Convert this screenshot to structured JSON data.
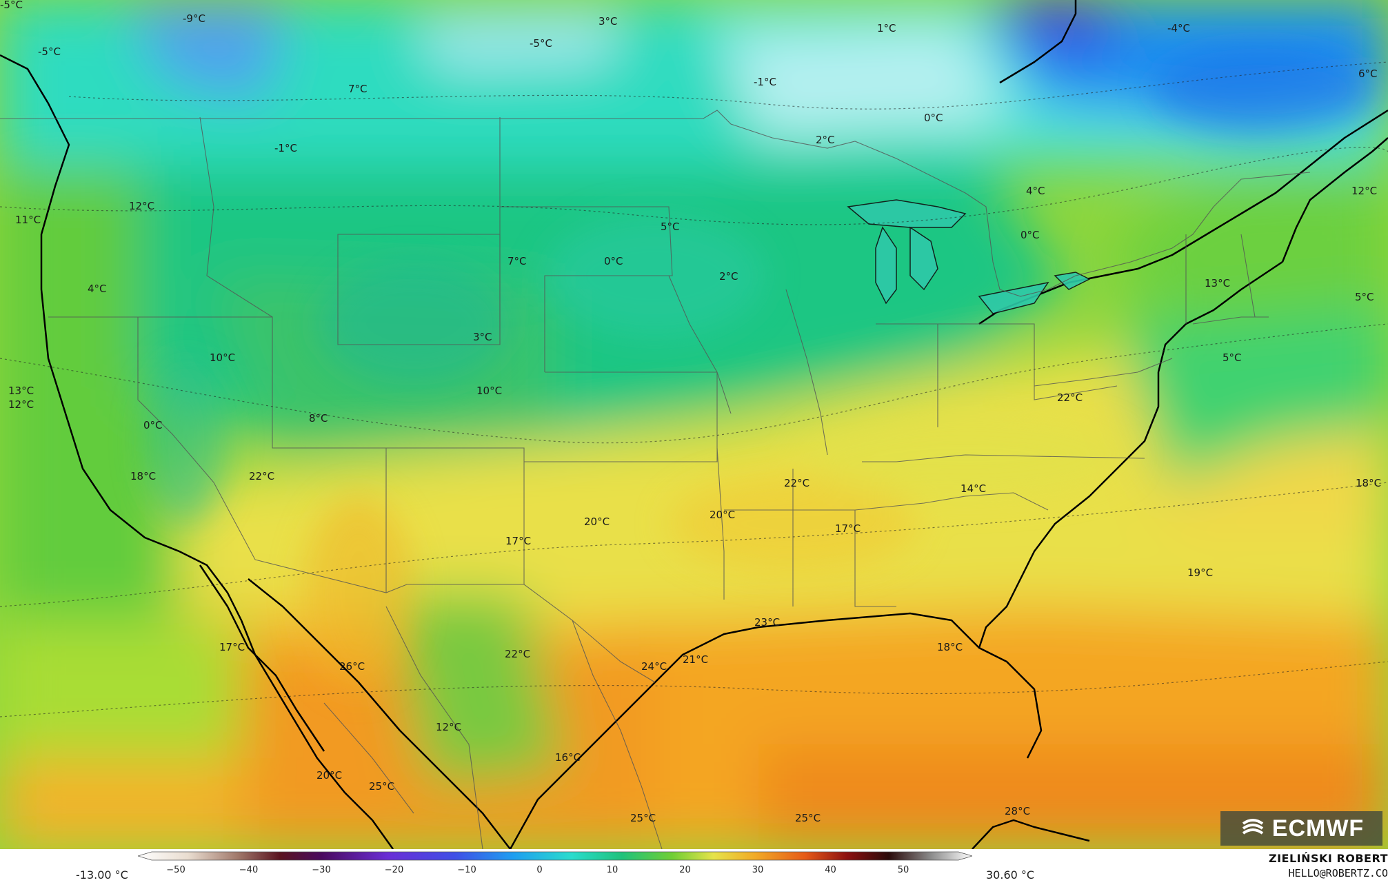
{
  "map": {
    "labels": [
      {
        "text": "-9°C"
      },
      {
        "text": "-5°C"
      },
      {
        "text": "3°C"
      },
      {
        "text": "-5°C"
      },
      {
        "text": "1°C"
      },
      {
        "text": "-4°C"
      },
      {
        "text": "6°C"
      },
      {
        "text": "-5°C"
      },
      {
        "text": "7°C"
      },
      {
        "text": "-1°C"
      },
      {
        "text": "0°C"
      },
      {
        "text": "-1°C"
      },
      {
        "text": "2°C"
      },
      {
        "text": "4°C"
      },
      {
        "text": "12°C"
      },
      {
        "text": "11°C"
      },
      {
        "text": "12°C"
      },
      {
        "text": "5°C"
      },
      {
        "text": "0°C"
      },
      {
        "text": "7°C"
      },
      {
        "text": "0°C"
      },
      {
        "text": "2°C"
      },
      {
        "text": "4°C"
      },
      {
        "text": "13°C"
      },
      {
        "text": "5°C"
      },
      {
        "text": "3°C"
      },
      {
        "text": "10°C"
      },
      {
        "text": "10°C"
      },
      {
        "text": "5°C"
      },
      {
        "text": "13°C"
      },
      {
        "text": "12°C"
      },
      {
        "text": "8°C"
      },
      {
        "text": "0°C"
      },
      {
        "text": "22°C"
      },
      {
        "text": "18°C"
      },
      {
        "text": "22°C"
      },
      {
        "text": "22°C"
      },
      {
        "text": "14°C"
      },
      {
        "text": "18°C"
      },
      {
        "text": "20°C"
      },
      {
        "text": "20°C"
      },
      {
        "text": "17°C"
      },
      {
        "text": "17°C"
      },
      {
        "text": "19°C"
      },
      {
        "text": "23°C"
      },
      {
        "text": "17°C"
      },
      {
        "text": "26°C"
      },
      {
        "text": "22°C"
      },
      {
        "text": "24°C"
      },
      {
        "text": "21°C"
      },
      {
        "text": "18°C"
      },
      {
        "text": "12°C"
      },
      {
        "text": "16°C"
      },
      {
        "text": "20°C"
      },
      {
        "text": "25°C"
      },
      {
        "text": "25°C"
      },
      {
        "text": "25°C"
      },
      {
        "text": "28°C"
      }
    ]
  },
  "legend": {
    "min_label": "-13.00 °C",
    "max_label": "30.60 °C",
    "ticks": [
      "−50",
      "−40",
      "−30",
      "−20",
      "−10",
      "0",
      "10",
      "20",
      "30",
      "40",
      "50"
    ],
    "scale_min": -50,
    "scale_max": 50
  },
  "credit": {
    "name": "ZIELIŃSKI ROBERT",
    "email": "HELLO@ROBERTZ.CO"
  },
  "logo": {
    "text": "ECMWF"
  }
}
